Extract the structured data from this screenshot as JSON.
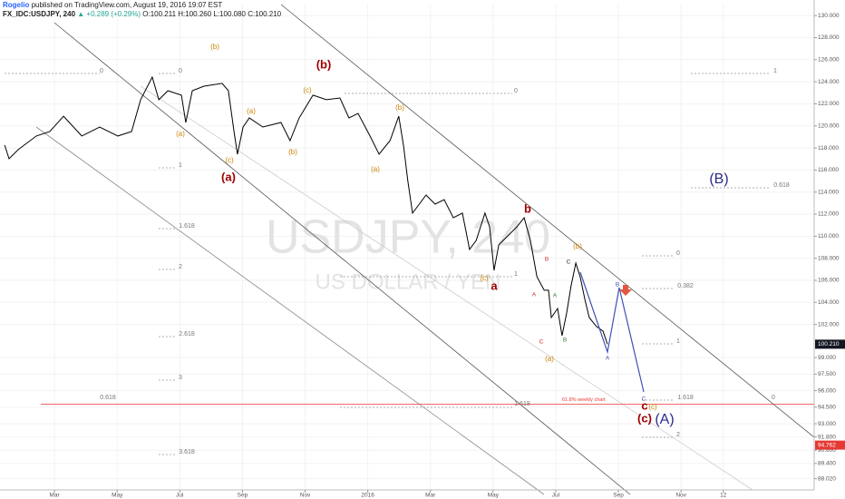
{
  "header": {
    "author": "Rogelio",
    "published": "published on TradingView.com, August 19, 2016 19:07 EST",
    "symbol": "FX_IDC:USDJPY, 240",
    "change": "+0.289 (+0.29%)",
    "ohlc": "O:100.211 H:100.260 L:100.080 C:100.210"
  },
  "watermark": {
    "symbol": "USDJPY, 240",
    "name": "US DOLLAR / YEN"
  },
  "chart_data": {
    "type": "line",
    "color": "#000000",
    "x": [
      0.41,
      0.55,
      0.84,
      1.42,
      1.85,
      2.29,
      2.87,
      3.44,
      4.02,
      4.46,
      4.75,
      5.12,
      5.33,
      5.62,
      6.05,
      6.19,
      6.4,
      6.77,
      7.35,
      7.55,
      7.73,
      7.84,
      8.02,
      8.22,
      8.65,
      9.23,
      9.52,
      9.81,
      10.25,
      10.68,
      11.11,
      11.4,
      11.69,
      12.07,
      12.36,
      12.71,
      12.99,
      13.14,
      13.28,
      13.43,
      13.86,
      14.15,
      14.44,
      14.73,
      15.02,
      15.25,
      15.46,
      15.74,
      15.89,
      16.03,
      16.18,
      16.47,
      16.76,
      16.99,
      17.19,
      17.4,
      17.63,
      17.77,
      17.86,
      18.06,
      18.2,
      18.35,
      18.49,
      18.64,
      18.78,
      18.93,
      19.07,
      19.3,
      19.51,
      19.65
    ],
    "values": [
      118.25,
      117.02,
      117.84,
      119.08,
      119.49,
      120.88,
      119.08,
      119.9,
      119.08,
      119.49,
      122.37,
      124.42,
      122.37,
      123.19,
      122.78,
      120.31,
      123.19,
      123.6,
      123.85,
      123.19,
      119.49,
      117.43,
      119.9,
      120.72,
      119.9,
      120.31,
      118.66,
      120.72,
      122.78,
      122.37,
      122.53,
      120.72,
      121.13,
      119.08,
      117.43,
      118.66,
      120.88,
      118.25,
      114.96,
      112.09,
      113.73,
      112.91,
      113.32,
      111.67,
      112.09,
      108.8,
      109.62,
      112.09,
      110.85,
      106.9,
      109.21,
      110.03,
      110.85,
      111.67,
      109.62,
      106.33,
      105.1,
      105.1,
      102.63,
      103.45,
      100.98,
      103.04,
      105.51,
      107.56,
      106.33,
      104.27,
      102.63,
      101.81,
      101.39,
      100.21
    ],
    "xlim": [
      0.26,
      26.25
    ],
    "ylim": [
      87,
      131
    ],
    "xticks": [
      {
        "value": 2,
        "label": "Mar"
      },
      {
        "value": 4,
        "label": "May"
      },
      {
        "value": 6,
        "label": "Jul"
      },
      {
        "value": 8,
        "label": "Sep"
      },
      {
        "value": 10,
        "label": "Nov"
      },
      {
        "value": 12,
        "label": "2016"
      },
      {
        "value": 14,
        "label": "Mar"
      },
      {
        "value": 16,
        "label": "May"
      },
      {
        "value": 18,
        "label": "Jul"
      },
      {
        "value": 20,
        "label": "Sep"
      },
      {
        "value": 22,
        "label": "Nov"
      },
      {
        "value": 23.35,
        "label": "12"
      }
    ],
    "yticks": [
      {
        "value": 130,
        "label": "130.000"
      },
      {
        "value": 128,
        "label": "128.000"
      },
      {
        "value": 126,
        "label": "126.000"
      },
      {
        "value": 124,
        "label": "124.000"
      },
      {
        "value": 122,
        "label": "122.000"
      },
      {
        "value": 120,
        "label": "120.000"
      },
      {
        "value": 118,
        "label": "118.000"
      },
      {
        "value": 116,
        "label": "116.000"
      },
      {
        "value": 114,
        "label": "114.000"
      },
      {
        "value": 112,
        "label": "112.000"
      },
      {
        "value": 110,
        "label": "110.000"
      },
      {
        "value": 108,
        "label": "108.000"
      },
      {
        "value": 106,
        "label": "106.000"
      },
      {
        "value": 104,
        "label": "104.000"
      },
      {
        "value": 102,
        "label": "102.000"
      },
      {
        "value": 99,
        "label": "99.000"
      },
      {
        "value": 97.5,
        "label": "97.500"
      },
      {
        "value": 96,
        "label": "96.000"
      },
      {
        "value": 94.5,
        "label": "94.500"
      },
      {
        "value": 93,
        "label": "93.000"
      },
      {
        "value": 91.8,
        "label": "91.800"
      },
      {
        "value": 90.6,
        "label": "90.600"
      },
      {
        "value": 89.4,
        "label": "89.400"
      },
      {
        "value": 88.02,
        "label": "88.020"
      }
    ],
    "grid": true,
    "last_price": {
      "value": 100.21,
      "label": "100.210",
      "color": "#131722"
    },
    "price_line": {
      "value": 94.762,
      "label": "94.762",
      "color": "#e53935",
      "text": "61.8% weekly chart"
    },
    "annotations": [
      {
        "text": "(b)",
        "color": "#c8860a"
      },
      {
        "text": "(a)",
        "color": "#c8860a"
      },
      {
        "text": "(c)",
        "color": "#c8860a"
      },
      {
        "text": "(a)",
        "color": "#c8860a"
      },
      {
        "text": "(b)",
        "color": "#c8860a"
      },
      {
        "text": "(c)",
        "color": "#c8860a"
      },
      {
        "text": "(b)",
        "color": "#c8860a"
      },
      {
        "text": "(a)",
        "color": "#c8860a"
      },
      {
        "text": "(c)",
        "color": "#c8860a"
      },
      {
        "text": "(b)",
        "color": "#c8860a"
      },
      {
        "text": "(a)",
        "color": "#c8860a"
      },
      {
        "text": "(c)",
        "color": "#c8860a"
      },
      {
        "text": "(b)",
        "color": "#a00000"
      },
      {
        "text": "(a)",
        "color": "#a00000"
      },
      {
        "text": "b",
        "color": "#a00000"
      },
      {
        "text": "a",
        "color": "#a00000"
      },
      {
        "text": "c",
        "color": "#a00000"
      },
      {
        "text": "(c)",
        "color": "#a00000"
      },
      {
        "text": "(B)",
        "color": "#2b2b8a"
      },
      {
        "text": "(A)",
        "color": "#2b2b8a"
      },
      {
        "text": "B",
        "color": "#d32f2f"
      },
      {
        "text": "A",
        "color": "#d32f2f"
      },
      {
        "text": "C",
        "color": "#d32f2f"
      },
      {
        "text": "A",
        "color": "#2e7d32"
      },
      {
        "text": "B",
        "color": "#2e7d32"
      },
      {
        "text": "C",
        "color": "#333333"
      },
      {
        "text": "A",
        "color": "#3f51b5"
      },
      {
        "text": "B",
        "color": "#3f51b5"
      },
      {
        "text": "C",
        "color": "#3f51b5"
      },
      {
        "text": "0",
        "color": "#777777"
      },
      {
        "text": "0",
        "color": "#777777"
      },
      {
        "text": "1",
        "color": "#777777"
      },
      {
        "text": "1.618",
        "color": "#777777"
      },
      {
        "text": "2",
        "color": "#777777"
      },
      {
        "text": "2.618",
        "color": "#777777"
      },
      {
        "text": "3",
        "color": "#777777"
      },
      {
        "text": "3.618",
        "color": "#777777"
      },
      {
        "text": "0",
        "color": "#777777"
      },
      {
        "text": "0.618",
        "color": "#777777"
      },
      {
        "text": "1",
        "color": "#777777"
      },
      {
        "text": "1.618",
        "color": "#777777"
      },
      {
        "text": "0",
        "color": "#777777"
      },
      {
        "text": "0.382",
        "color": "#777777"
      },
      {
        "text": "1",
        "color": "#777777"
      },
      {
        "text": "1.618",
        "color": "#777777"
      },
      {
        "text": "2",
        "color": "#777777"
      },
      {
        "text": "1",
        "color": "#777777"
      },
      {
        "text": "0.618",
        "color": "#777777"
      },
      {
        "text": "0",
        "color": "#777777"
      }
    ]
  }
}
